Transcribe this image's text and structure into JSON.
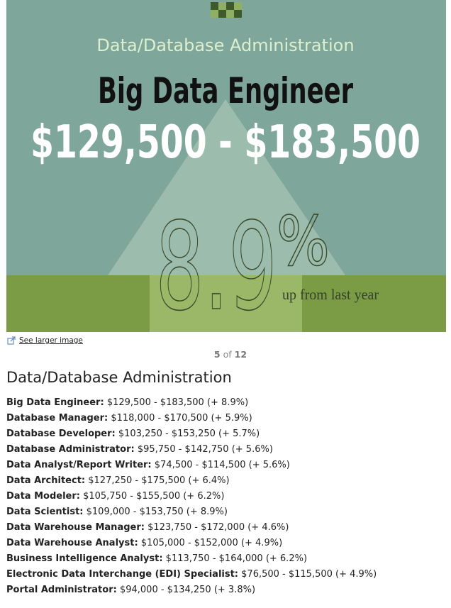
{
  "slide": {
    "category": "Data/Database Administration",
    "title": "Big Data Engineer",
    "salary_range": "$129,500 - $183,500",
    "change_number": "8.9",
    "change_unit": "%",
    "change_caption": "up from last year"
  },
  "link": "See larger image",
  "pager": {
    "current": "5",
    "separator": "of",
    "total": "12"
  },
  "section": {
    "heading": "Data/Database Administration",
    "items": [
      {
        "role": "Big Data Engineer:",
        "details": "$129,500 - $183,500 (+ 8.9%)"
      },
      {
        "role": "Database Manager:",
        "details": "$118,000 - $170,500 (+ 5.9%)"
      },
      {
        "role": "Database Developer:",
        "details": "$103,250 - $153,250 (+ 5.7%)"
      },
      {
        "role": "Database Administrator:",
        "details": "$95,750 - $142,750 (+ 5.6%)"
      },
      {
        "role": "Data Analyst/Report Writer:",
        "details": "$74,500 - $114,500 (+ 5.6%)"
      },
      {
        "role": "Data Architect:",
        "details": "$127,250 - $175,500 (+ 6.4%)"
      },
      {
        "role": "Data Modeler:",
        "details": "$105,750 - $155,500 (+ 6.2%)"
      },
      {
        "role": "Data Scientist:",
        "details": "$109,000 - $153,750 (+ 8.9%)"
      },
      {
        "role": "Data Warehouse Manager:",
        "details": "$123,750 - $172,000 (+ 4.6%)"
      },
      {
        "role": "Data Warehouse Analyst:",
        "details": "$105,000 - $152,000 (+ 4.9%)"
      },
      {
        "role": "Business Intelligence Analyst:",
        "details": "$113,750 - $164,000 (+ 6.2%)"
      },
      {
        "role": "Electronic Data Interchange (EDI) Specialist:",
        "details": "$76,500 - $115,500 (+ 4.9%)"
      },
      {
        "role": "Portal Administrator:",
        "details": "$94,000 - $134,250 (+ 3.8%)"
      }
    ]
  }
}
